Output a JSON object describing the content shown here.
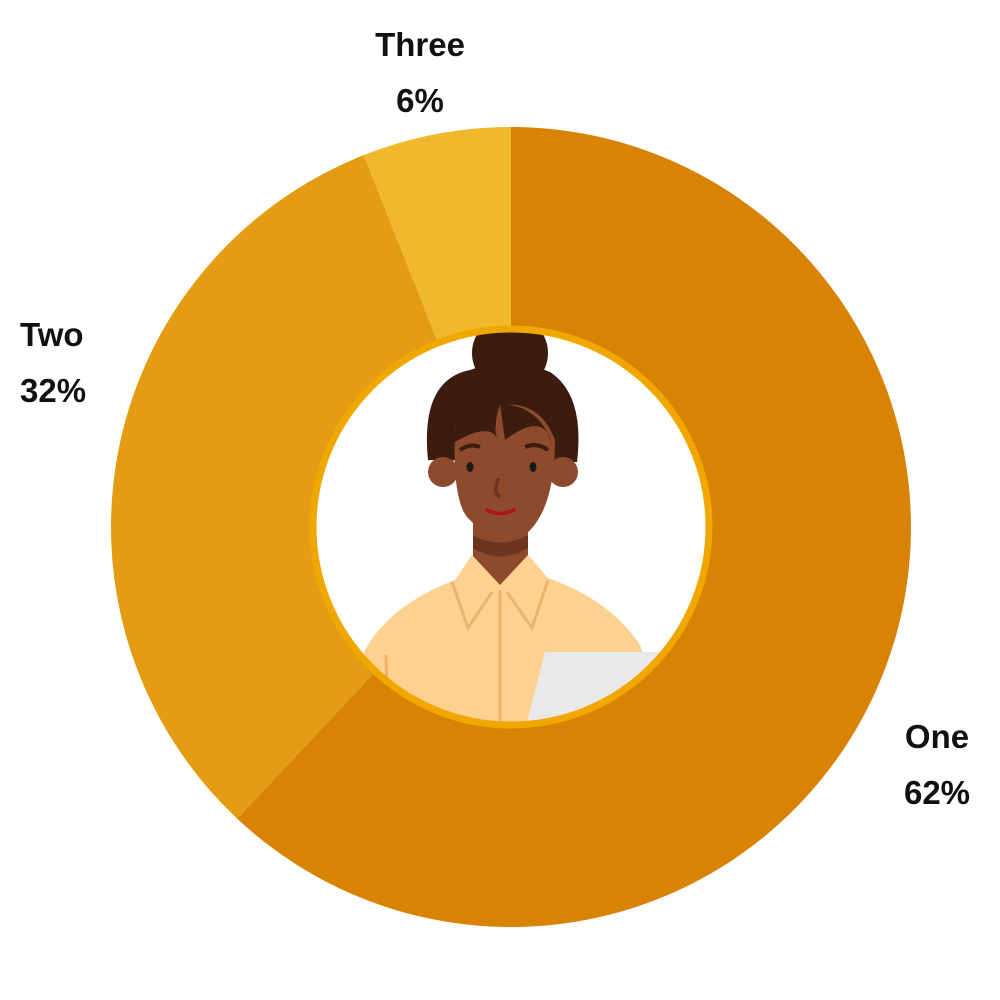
{
  "chart_data": {
    "type": "pie",
    "donut": true,
    "start": "top",
    "direction": "clockwise",
    "slices": [
      {
        "label": "One",
        "value": 62,
        "display": "62%",
        "color": "#D98305"
      },
      {
        "label": "Two",
        "value": 32,
        "display": "32%",
        "color": "#E49C14"
      },
      {
        "label": "Three",
        "value": 6,
        "display": "6%",
        "color": "#F0B82C"
      }
    ],
    "center_ring_color": "#F0A800",
    "center_image": "illustration of a woman with hair bun in a light yellow shirt holding paper"
  }
}
